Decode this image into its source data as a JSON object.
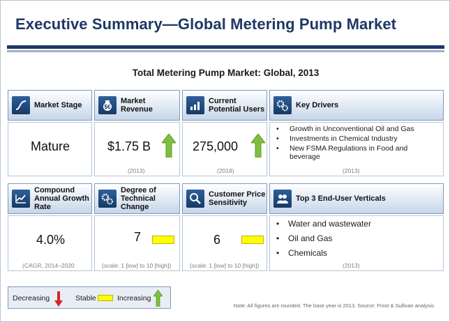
{
  "title": "Executive Summary—Global Metering Pump Market",
  "subtitle": "Total Metering Pump Market: Global, 2013",
  "cards": {
    "market_stage": {
      "label": "Market Stage",
      "value": "Mature",
      "icon": "s-curve-icon"
    },
    "market_revenue": {
      "label": "Market Revenue",
      "value": "$1.75 B",
      "note": "(2013)",
      "trend": "increasing",
      "icon": "money-bag-icon"
    },
    "potential_users": {
      "label": "Current Potential Users",
      "value": "275,000",
      "note": "(2018)",
      "trend": "increasing",
      "icon": "bar-chart-icon"
    },
    "key_drivers": {
      "label": "Key Drivers",
      "icon": "gears-icon",
      "items": [
        "Growth  in Unconventional  Oil and Gas",
        "Investments  in Chemical Industry",
        "New FSMA Regulations  in Food and beverage"
      ],
      "note": "(2013)"
    },
    "cagr": {
      "label": "Compound Annual Growth Rate",
      "value": "4.0%",
      "note": "(CAGR, 2014–2020",
      "icon": "line-chart-icon"
    },
    "tech_change": {
      "label": "Degree of Technical Change",
      "value": "7",
      "note": "(scale: 1 [low] to 10 [high])",
      "trend": "stable",
      "icon": "gears-icon"
    },
    "price_sensitivity": {
      "label": "Customer Price Sensitivity",
      "value": "6",
      "note": "(scale: 1 [low] to 10 [high])",
      "trend": "stable",
      "icon": "magnifier-icon"
    },
    "end_user": {
      "label": "Top 3 End-User Verticals",
      "icon": "people-icon",
      "items": [
        "Water and wastewater",
        "Oil and Gas",
        "Chemicals"
      ],
      "note": "(2013)"
    }
  },
  "legend": {
    "decreasing": "Decreasing",
    "stable": "Stable",
    "increasing": "Increasing"
  },
  "footnote": "Note: All figures are rounded.  The base year is 2013.  Source: Frost & Sullivan analysis.",
  "colors": {
    "navy": "#1f3864",
    "arrow_up": "#7fbf3f",
    "arrow_down": "#d42a1e",
    "stable": "#ffff00"
  }
}
